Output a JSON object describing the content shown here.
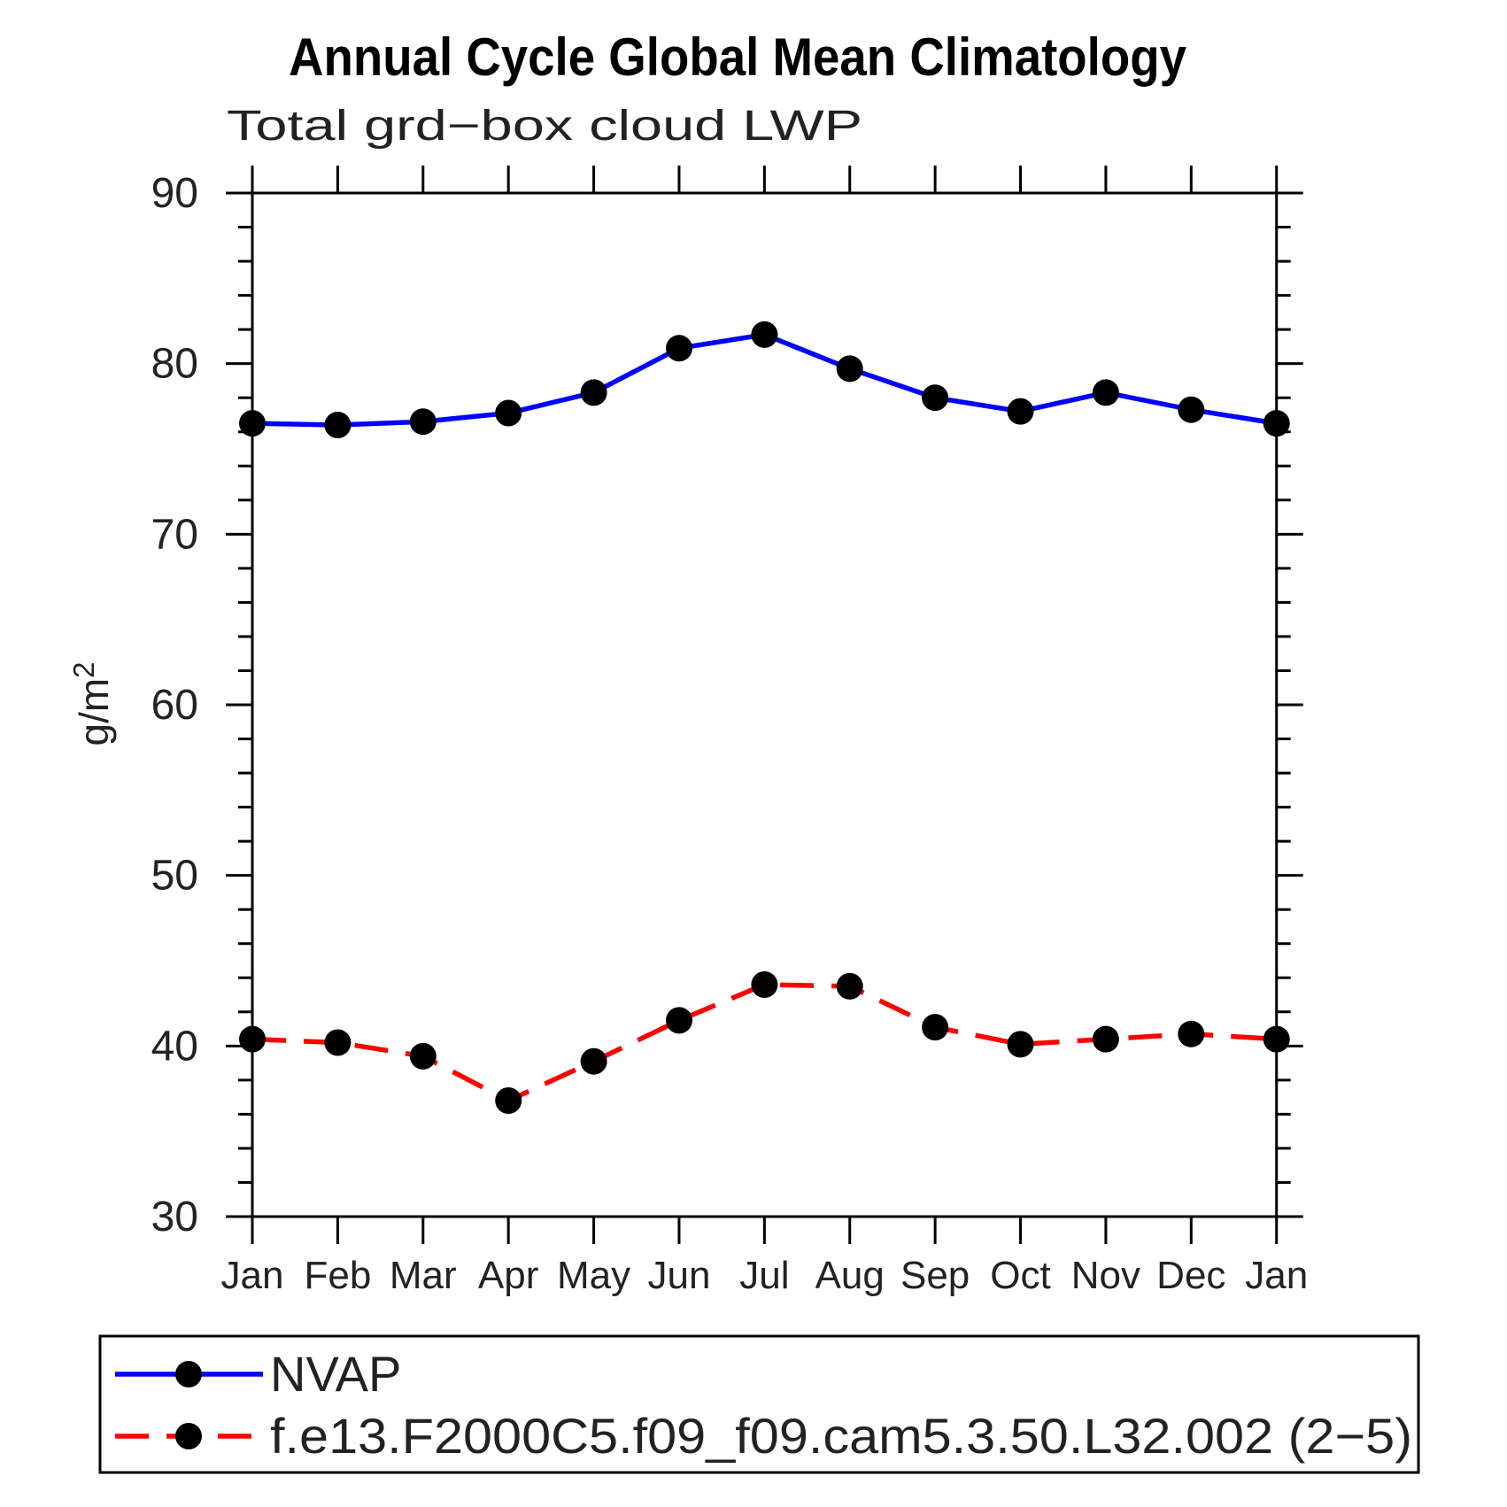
{
  "chart_data": {
    "type": "line",
    "title": "Annual Cycle Global Mean Climatology",
    "subtitle": "Total grd−box cloud LWP",
    "ylabel": "g/m²",
    "ylabel_base": "g/m",
    "ylabel_exponent": "2",
    "xlabel": "",
    "categories": [
      "Jan",
      "Feb",
      "Mar",
      "Apr",
      "May",
      "Jun",
      "Jul",
      "Aug",
      "Sep",
      "Oct",
      "Nov",
      "Dec",
      "Jan"
    ],
    "ylim": [
      30,
      90
    ],
    "ytick_major": [
      30,
      40,
      50,
      60,
      70,
      80,
      90
    ],
    "ytick_minor_interval": 2,
    "grid": false,
    "legend_position": "bottom-left-box",
    "frame_color": "#000000",
    "marker_shape": "filled-circle",
    "series": [
      {
        "name": "NVAP",
        "line_color": "#0000ff",
        "line_style": "solid",
        "marker_color": "#000000",
        "values": [
          76.5,
          76.4,
          76.6,
          77.1,
          78.3,
          80.9,
          81.7,
          79.7,
          78.0,
          77.2,
          78.3,
          77.3,
          76.5
        ]
      },
      {
        "name": "f.e13.F2000C5.f09_f09.cam5.3.50.L32.002 (2−5)",
        "line_color": "#ff0000",
        "line_style": "dashed",
        "marker_color": "#000000",
        "values": [
          40.4,
          40.2,
          39.4,
          36.8,
          39.1,
          41.5,
          43.6,
          43.5,
          41.1,
          40.1,
          40.4,
          40.7,
          40.4
        ]
      }
    ]
  }
}
